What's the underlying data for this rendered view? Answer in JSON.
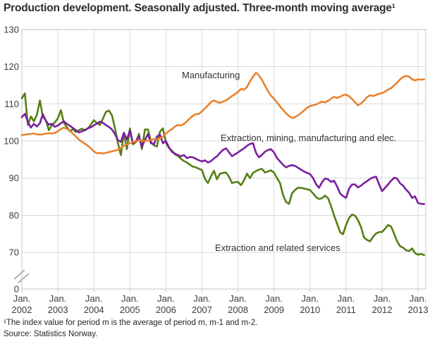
{
  "title": "Production development. Seasonally adjusted. Three-month moving average¹",
  "footnote": "¹The index value for period m is the average of period m, m-1 and m-2.",
  "source": "Source: Statistics Norway.",
  "colors": {
    "manufacturing": "#e8822e",
    "extraction_mining": "#7a1f9e",
    "extraction_services": "#538012",
    "grid": "#d9d9d9",
    "frame": "#c6c6c6",
    "axis_text": "#3d3d3d",
    "break_mark": "#b0b0b0"
  },
  "chart_data": {
    "type": "line",
    "title": "Production development. Seasonally adjusted. Three-month moving average¹",
    "x_start": "Jan 2002",
    "x_frequency": "monthly",
    "axis_break": true,
    "y_ticks": [
      130,
      120,
      110,
      100,
      90,
      80,
      70,
      0
    ],
    "ylim_visible": [
      70,
      130
    ],
    "x_ticks": [
      {
        "month": "Jan.",
        "year": "2002"
      },
      {
        "month": "Jan.",
        "year": "2003"
      },
      {
        "month": "Jan.",
        "year": "2004"
      },
      {
        "month": "Jan.",
        "year": "2005"
      },
      {
        "month": "Jan.",
        "year": "2006"
      },
      {
        "month": "Jan.",
        "year": "2007"
      },
      {
        "month": "Jan.",
        "year": "2008"
      },
      {
        "month": "Jan.",
        "year": "2009"
      },
      {
        "month": "Jan.",
        "year": "2010"
      },
      {
        "month": "Jan.",
        "year": "2011"
      },
      {
        "month": "Jan.",
        "year": "2012"
      },
      {
        "month": "Jan.",
        "year": "2013"
      }
    ],
    "legend_position": "inline-labels",
    "grid": true,
    "series": [
      {
        "id": "manufacturing",
        "name": "Manufacturing",
        "color": "#e8822e",
        "label_x": 258,
        "label_y": 81,
        "values": [
          101.6,
          101.7,
          101.8,
          101.9,
          102.0,
          101.8,
          101.7,
          101.8,
          102.0,
          102.1,
          102.0,
          102.2,
          102.6,
          103.2,
          103.6,
          103.3,
          102.7,
          102.0,
          101.2,
          100.4,
          99.8,
          99.3,
          98.7,
          98.0,
          97.2,
          96.7,
          96.8,
          96.6,
          96.8,
          97.0,
          97.2,
          97.4,
          97.6,
          98.2,
          98.7,
          99.1,
          99.4,
          99.7,
          99.9,
          100.1,
          100.2,
          100.0,
          100.1,
          100.3,
          100.5,
          100.4,
          100.7,
          101.2,
          102.0,
          102.7,
          103.2,
          103.9,
          104.3,
          104.2,
          104.6,
          105.3,
          106.1,
          106.8,
          107.2,
          107.3,
          108.0,
          108.8,
          109.6,
          110.5,
          110.9,
          110.5,
          110.3,
          110.6,
          110.9,
          111.5,
          112.1,
          112.6,
          113.2,
          114.0,
          113.8,
          114.5,
          116.0,
          117.3,
          118.4,
          117.6,
          116.4,
          114.9,
          113.4,
          112.2,
          111.4,
          110.4,
          109.3,
          108.4,
          107.5,
          106.7,
          106.2,
          106.4,
          106.9,
          107.5,
          108.2,
          108.9,
          109.4,
          109.6,
          109.8,
          110.2,
          110.6,
          110.4,
          110.8,
          111.4,
          111.9,
          111.6,
          111.9,
          112.3,
          112.5,
          112.0,
          111.3,
          110.4,
          109.6,
          110.1,
          110.9,
          111.8,
          112.3,
          112.1,
          112.4,
          112.7,
          112.9,
          113.3,
          113.8,
          114.2,
          114.9,
          115.7,
          116.6,
          117.2,
          117.5,
          117.3,
          116.6,
          116.3,
          116.6,
          116.5,
          116.6
        ]
      },
      {
        "id": "extraction-mining",
        "name": "Extraction, mining, manufacturing and elec.",
        "color": "#7a1f9e",
        "label_x": 313,
        "label_y": 170,
        "values": [
          106.4,
          107.3,
          105.2,
          103.6,
          104.6,
          103.9,
          104.8,
          107.2,
          105.4,
          104.4,
          104.6,
          103.8,
          104.2,
          104.8,
          105.3,
          104.6,
          104.1,
          103.5,
          102.9,
          102.3,
          102.6,
          103.0,
          103.4,
          103.7,
          104.2,
          104.7,
          105.2,
          104.9,
          104.3,
          103.8,
          103.1,
          101.9,
          100.2,
          99.8,
          102.2,
          100.4,
          102.8,
          99.4,
          99.9,
          101.3,
          98.4,
          100.3,
          101.9,
          99.4,
          99.1,
          101.2,
          101.7,
          99.4,
          100.0,
          98.3,
          97.1,
          96.6,
          96.2,
          95.9,
          96.2,
          95.4,
          95.7,
          95.6,
          95.2,
          94.8,
          94.5,
          94.8,
          94.2,
          94.6,
          95.3,
          95.9,
          96.8,
          97.6,
          98.0,
          97.0,
          95.9,
          96.4,
          96.9,
          97.5,
          98.0,
          98.7,
          99.2,
          99.4,
          96.8,
          95.6,
          96.3,
          97.1,
          97.6,
          97.8,
          96.9,
          95.4,
          94.5,
          93.6,
          92.9,
          93.3,
          93.5,
          93.3,
          92.8,
          92.3,
          91.8,
          91.4,
          91.1,
          90.0,
          88.4,
          87.4,
          88.9,
          89.9,
          89.7,
          89.0,
          89.3,
          87.8,
          85.9,
          85.2,
          84.7,
          87.2,
          88.3,
          88.3,
          87.5,
          88.0,
          88.7,
          89.2,
          89.8,
          90.2,
          90.4,
          88.4,
          86.5,
          87.4,
          88.3,
          89.3,
          90.1,
          89.9,
          88.6,
          88.0,
          86.9,
          86.1,
          84.7,
          85.1,
          83.3,
          83.1,
          83.0
        ]
      },
      {
        "id": "extraction-services",
        "name": "Extraction and related services",
        "color": "#538012",
        "label_x": 305,
        "label_y": 326,
        "values": [
          111.5,
          112.8,
          104.3,
          106.6,
          105.3,
          107.0,
          110.9,
          106.5,
          105.6,
          102.9,
          104.3,
          105.0,
          106.1,
          108.3,
          104.9,
          103.7,
          102.6,
          103.2,
          102.4,
          102.9,
          103.3,
          102.8,
          103.4,
          104.4,
          105.6,
          104.8,
          104.3,
          106.0,
          107.8,
          108.2,
          106.9,
          103.5,
          99.4,
          96.2,
          102.2,
          97.8,
          103.4,
          99.1,
          99.7,
          101.9,
          97.8,
          103.1,
          103.1,
          99.8,
          98.8,
          98.5,
          102.5,
          103.4,
          99.5,
          98.1,
          97.4,
          96.4,
          96.0,
          95.2,
          94.6,
          94.2,
          93.6,
          93.1,
          92.9,
          92.5,
          92.2,
          89.8,
          88.7,
          90.5,
          92.0,
          89.7,
          91.2,
          91.4,
          91.5,
          90.4,
          88.7,
          88.9,
          89.0,
          88.1,
          89.4,
          91.2,
          90.0,
          91.4,
          91.9,
          92.3,
          92.5,
          91.5,
          91.8,
          92.1,
          91.5,
          90.0,
          88.7,
          85.5,
          83.6,
          83.1,
          85.9,
          86.8,
          87.4,
          87.4,
          87.2,
          87.0,
          86.8,
          85.9,
          84.9,
          84.4,
          84.6,
          85.3,
          84.6,
          82.5,
          80.0,
          77.8,
          75.5,
          74.9,
          77.4,
          79.3,
          80.2,
          79.9,
          78.7,
          76.8,
          74.0,
          73.4,
          73.0,
          74.2,
          75.1,
          75.5,
          75.5,
          76.4,
          77.4,
          77.0,
          75.1,
          73.0,
          71.7,
          71.3,
          70.6,
          70.4,
          71.1,
          69.8,
          69.4,
          69.6,
          69.3
        ]
      }
    ]
  }
}
